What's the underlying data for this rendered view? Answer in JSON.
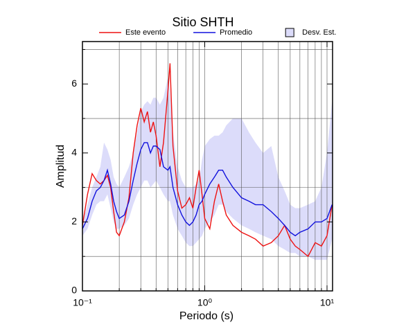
{
  "chart_data": {
    "type": "line",
    "title": "Sitio SHTH",
    "xlabel": "Periodo (s)",
    "ylabel": "Amplitud",
    "xscale": "log",
    "grid": true,
    "legend": "top",
    "x": [
      0.1,
      0.11,
      0.12,
      0.13,
      0.14,
      0.15,
      0.16,
      0.17,
      0.18,
      0.19,
      0.2,
      0.22,
      0.24,
      0.26,
      0.28,
      0.3,
      0.32,
      0.34,
      0.36,
      0.38,
      0.4,
      0.43,
      0.46,
      0.5,
      0.52,
      0.55,
      0.6,
      0.65,
      0.7,
      0.75,
      0.8,
      0.85,
      0.9,
      0.95,
      1.0,
      1.1,
      1.2,
      1.3,
      1.4,
      1.5,
      1.7,
      2.0,
      2.3,
      2.6,
      3.0,
      3.5,
      4,
      4.5,
      5,
      5.5,
      6,
      7,
      8,
      9,
      10,
      11
    ],
    "band": {
      "name": "Desv. Est.",
      "color": "#dcdcfa",
      "upper": [
        2.0,
        2.5,
        3.0,
        3.3,
        3.6,
        4.3,
        4.1,
        3.8,
        3.3,
        3.1,
        3.0,
        3.3,
        3.6,
        4.0,
        4.6,
        5.2,
        5.4,
        5.5,
        5.4,
        5.6,
        5.6,
        5.4,
        5.6,
        6.2,
        5.8,
        4.6,
        3.6,
        3.2,
        3.0,
        3.0,
        3.0,
        3.1,
        3.2,
        3.8,
        4.2,
        4.4,
        4.5,
        4.5,
        4.6,
        4.8,
        5.0,
        5.0,
        4.6,
        4.3,
        4.0,
        4.2,
        3.3,
        2.9,
        2.5,
        2.4,
        2.4,
        2.5,
        2.6,
        3.0,
        4.0,
        5.5
      ],
      "lower": [
        1.6,
        1.8,
        2.2,
        2.5,
        2.6,
        2.6,
        2.8,
        2.4,
        2.0,
        1.8,
        1.8,
        1.9,
        2.1,
        2.5,
        2.8,
        3.0,
        3.2,
        3.2,
        3.0,
        3.1,
        3.2,
        3.0,
        2.8,
        2.6,
        2.6,
        2.2,
        1.8,
        1.6,
        1.4,
        1.3,
        1.3,
        1.4,
        1.5,
        1.6,
        1.8,
        2.0,
        2.2,
        2.5,
        2.5,
        2.3,
        2.1,
        1.9,
        1.8,
        1.7,
        1.6,
        1.5,
        1.3,
        1.2,
        1.1,
        1.1,
        1.0,
        1.0,
        0.9,
        0.9,
        0.9,
        1.5
      ]
    },
    "series": [
      {
        "name": "Este evento",
        "color": "#ee1111",
        "values": [
          1.9,
          2.8,
          3.4,
          3.2,
          3.1,
          3.2,
          3.35,
          3.0,
          2.3,
          1.7,
          1.6,
          2.0,
          2.7,
          4.0,
          4.8,
          5.3,
          4.9,
          5.2,
          4.6,
          4.9,
          4.5,
          3.6,
          4.3,
          5.8,
          6.6,
          4.2,
          2.9,
          2.4,
          2.5,
          2.7,
          2.4,
          3.0,
          3.5,
          2.8,
          2.1,
          1.8,
          2.6,
          3.1,
          2.6,
          2.2,
          1.9,
          1.7,
          1.6,
          1.5,
          1.3,
          1.4,
          1.6,
          1.9,
          1.5,
          1.3,
          1.2,
          1.0,
          1.4,
          1.3,
          1.6,
          2.5
        ]
      },
      {
        "name": "Promedio",
        "color": "#1111dd",
        "values": [
          1.8,
          2.1,
          2.6,
          2.9,
          3.0,
          3.2,
          3.5,
          3.1,
          2.6,
          2.3,
          2.1,
          2.2,
          2.6,
          3.2,
          3.7,
          4.1,
          4.3,
          4.3,
          4.0,
          4.2,
          4.2,
          4.1,
          3.6,
          3.5,
          3.6,
          3.0,
          2.5,
          2.2,
          2.0,
          1.9,
          2.0,
          2.2,
          2.5,
          2.6,
          2.8,
          3.1,
          3.3,
          3.5,
          3.5,
          3.3,
          3.0,
          2.7,
          2.6,
          2.5,
          2.5,
          2.3,
          2.1,
          1.9,
          1.7,
          1.6,
          1.7,
          1.8,
          2.0,
          2.0,
          2.1,
          2.5
        ]
      }
    ],
    "xlim": [
      0.1,
      11.1
    ],
    "xticks": [
      {
        "value": 0.1,
        "label": "10⁻¹"
      },
      {
        "value": 1,
        "label": "10⁰"
      },
      {
        "value": 10,
        "label": "10¹"
      }
    ],
    "xminor_ticks": [
      0.2,
      0.3,
      0.4,
      0.5,
      0.6,
      0.7,
      0.8,
      0.9,
      2,
      3,
      4,
      5,
      6,
      7,
      8,
      9
    ],
    "ylim": [
      0,
      7.23
    ],
    "yticks": [
      0,
      2,
      4,
      6
    ],
    "yminor_ticks": [
      1,
      3,
      5,
      7
    ]
  }
}
